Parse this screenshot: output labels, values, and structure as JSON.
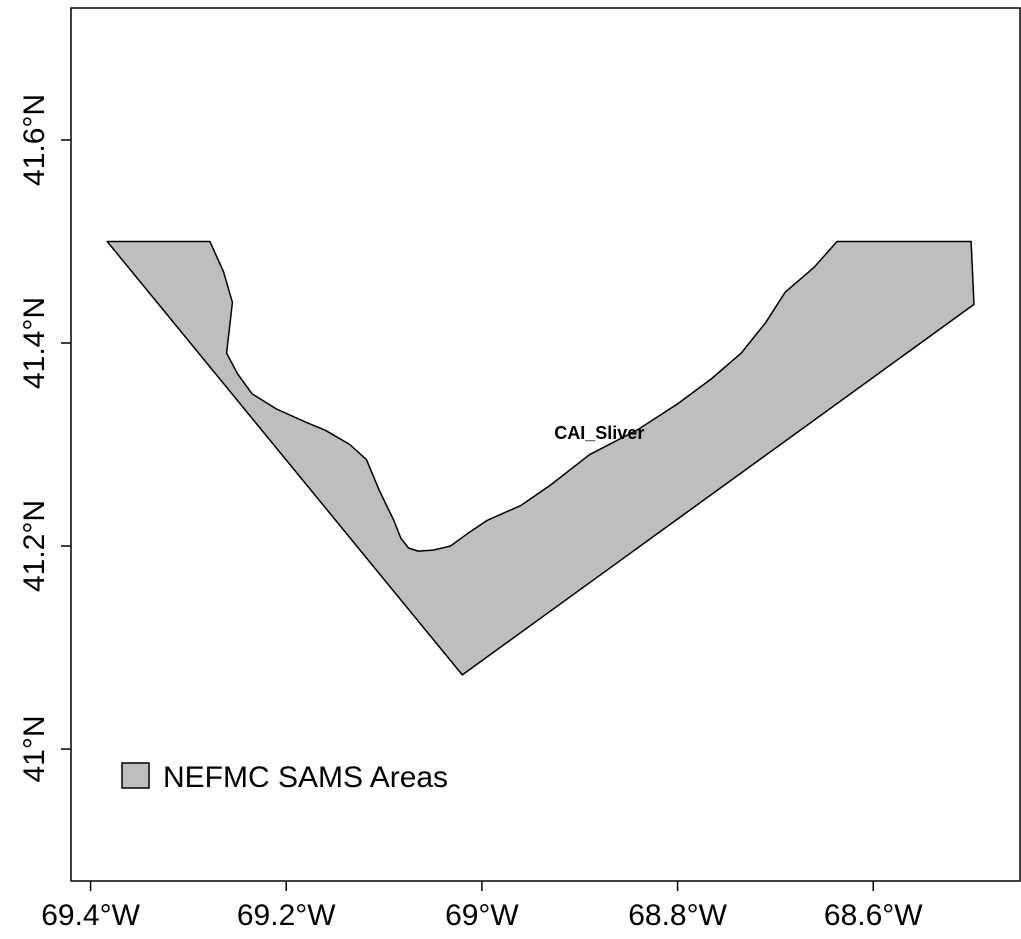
{
  "map": {
    "lon_range": [
      -69.42,
      -68.45
    ],
    "lat_range": [
      40.87,
      41.73
    ],
    "x_ticks": [
      {
        "value": -69.4,
        "label": "69.4°W"
      },
      {
        "value": -69.2,
        "label": "69.2°W"
      },
      {
        "value": -69.0,
        "label": "69°W"
      },
      {
        "value": -68.8,
        "label": "68.8°W"
      },
      {
        "value": -68.6,
        "label": "68.6°W"
      }
    ],
    "y_ticks": [
      {
        "value": 41.0,
        "label": "41°N"
      },
      {
        "value": 41.2,
        "label": "41.2°N"
      },
      {
        "value": 41.4,
        "label": "41.4°N"
      },
      {
        "value": 41.6,
        "label": "41.6°N"
      }
    ],
    "area": {
      "label": "CAI_Sliver",
      "label_lon": -68.88,
      "label_lat": 41.31,
      "fill": "#bebebe",
      "stroke": "#000000",
      "outline": [
        [
          -69.383,
          41.5
        ],
        [
          -69.278,
          41.5
        ],
        [
          -69.264,
          41.47
        ],
        [
          -69.255,
          41.44
        ],
        [
          -69.258,
          41.415
        ],
        [
          -69.261,
          41.39
        ],
        [
          -69.25,
          41.37
        ],
        [
          -69.235,
          41.35
        ],
        [
          -69.21,
          41.335
        ],
        [
          -69.18,
          41.322
        ],
        [
          -69.16,
          41.314
        ],
        [
          -69.135,
          41.3
        ],
        [
          -69.118,
          41.285
        ],
        [
          -69.105,
          41.255
        ],
        [
          -69.09,
          41.225
        ],
        [
          -69.083,
          41.208
        ],
        [
          -69.075,
          41.198
        ],
        [
          -69.065,
          41.195
        ],
        [
          -69.05,
          41.196
        ],
        [
          -69.032,
          41.2
        ],
        [
          -69.015,
          41.212
        ],
        [
          -68.995,
          41.225
        ],
        [
          -68.96,
          41.24
        ],
        [
          -68.93,
          41.26
        ],
        [
          -68.89,
          41.29
        ],
        [
          -68.84,
          41.315
        ],
        [
          -68.8,
          41.34
        ],
        [
          -68.765,
          41.365
        ],
        [
          -68.735,
          41.39
        ],
        [
          -68.71,
          41.42
        ],
        [
          -68.69,
          41.45
        ],
        [
          -68.66,
          41.475
        ],
        [
          -68.637,
          41.5
        ],
        [
          -68.5,
          41.5
        ],
        [
          -68.497,
          41.438
        ],
        [
          -69.02,
          41.073
        ]
      ]
    },
    "legend": {
      "label": "NEFMC SAMS Areas",
      "fill": "#bebebe"
    }
  }
}
